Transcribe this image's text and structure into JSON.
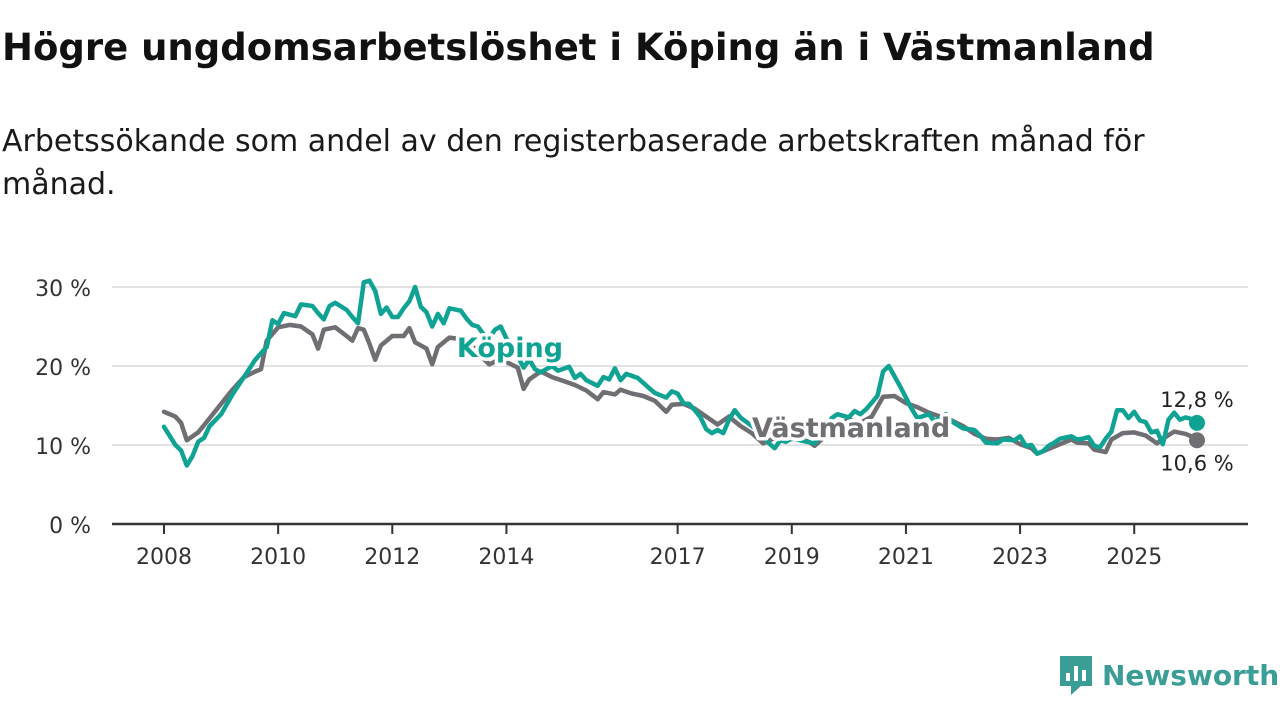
{
  "title": "Högre ungdomsarbetslöshet i Köping än i Västmanland",
  "subtitle": "Arbetssökande som andel av den registerbaserade arbetskraften månad för månad.",
  "brand": {
    "name": "Newsworthy",
    "logo_icon": "newsworthy-logo-icon"
  },
  "chart_data": {
    "type": "line",
    "title": "Högre ungdomsarbetslöshet i Köping än i Västmanland",
    "subtitle": "Arbetssökande som andel av den registerbaserade arbetskraften månad för månad.",
    "xlabel": "",
    "ylabel": "",
    "xlim": [
      2007.5,
      2026.9
    ],
    "ylim": [
      0,
      30
    ],
    "grid": true,
    "legend": "inline labels",
    "x_ticks": [
      2008,
      2010,
      2012,
      2014,
      2017,
      2019,
      2021,
      2023,
      2025
    ],
    "x_tick_labels": [
      "2008",
      "2010",
      "2012",
      "2014",
      "2017",
      "2019",
      "2021",
      "2023",
      "2025"
    ],
    "y_ticks": [
      0,
      10,
      20,
      30
    ],
    "y_tick_labels": [
      "0 %",
      "10 %",
      "20 %",
      "30 %"
    ],
    "series": [
      {
        "name": "Västmanland",
        "label": "Västmanland",
        "color": "#6e6e73",
        "end_label": "10,6 %",
        "points": [
          [
            2008.0,
            14.2
          ],
          [
            2008.2,
            13.6
          ],
          [
            2008.3,
            12.8
          ],
          [
            2008.4,
            10.6
          ],
          [
            2008.6,
            11.6
          ],
          [
            2008.8,
            13.4
          ],
          [
            2009.0,
            15.2
          ],
          [
            2009.2,
            17.0
          ],
          [
            2009.4,
            18.6
          ],
          [
            2009.6,
            19.3
          ],
          [
            2009.7,
            19.6
          ],
          [
            2009.8,
            23.2
          ],
          [
            2010.0,
            24.9
          ],
          [
            2010.2,
            25.2
          ],
          [
            2010.4,
            25.0
          ],
          [
            2010.6,
            24.0
          ],
          [
            2010.7,
            22.2
          ],
          [
            2010.8,
            24.6
          ],
          [
            2011.0,
            24.9
          ],
          [
            2011.2,
            23.8
          ],
          [
            2011.3,
            23.2
          ],
          [
            2011.4,
            24.8
          ],
          [
            2011.5,
            24.6
          ],
          [
            2011.6,
            22.8
          ],
          [
            2011.7,
            20.8
          ],
          [
            2011.8,
            22.6
          ],
          [
            2012.0,
            23.8
          ],
          [
            2012.2,
            23.8
          ],
          [
            2012.3,
            24.8
          ],
          [
            2012.4,
            23.0
          ],
          [
            2012.6,
            22.2
          ],
          [
            2012.7,
            20.2
          ],
          [
            2012.8,
            22.4
          ],
          [
            2013.0,
            23.6
          ],
          [
            2013.2,
            23.4
          ],
          [
            2013.4,
            22.6
          ],
          [
            2013.5,
            21.6
          ],
          [
            2013.7,
            20.2
          ],
          [
            2013.9,
            20.9
          ],
          [
            2014.0,
            20.5
          ],
          [
            2014.2,
            19.8
          ],
          [
            2014.3,
            17.1
          ],
          [
            2014.4,
            18.3
          ],
          [
            2014.6,
            19.3
          ],
          [
            2014.8,
            18.6
          ],
          [
            2015.0,
            18.1
          ],
          [
            2015.2,
            17.6
          ],
          [
            2015.4,
            16.9
          ],
          [
            2015.6,
            15.8
          ],
          [
            2015.7,
            16.7
          ],
          [
            2015.9,
            16.4
          ],
          [
            2016.0,
            17.0
          ],
          [
            2016.2,
            16.5
          ],
          [
            2016.4,
            16.2
          ],
          [
            2016.6,
            15.6
          ],
          [
            2016.8,
            14.2
          ],
          [
            2016.9,
            15.1
          ],
          [
            2017.1,
            15.2
          ],
          [
            2017.3,
            14.6
          ],
          [
            2017.5,
            13.6
          ],
          [
            2017.7,
            12.6
          ],
          [
            2017.9,
            13.6
          ],
          [
            2018.1,
            12.4
          ],
          [
            2018.3,
            11.5
          ],
          [
            2018.5,
            10.2
          ],
          [
            2018.7,
            10.9
          ],
          [
            2018.9,
            10.6
          ],
          [
            2019.1,
            10.9
          ],
          [
            2019.3,
            10.4
          ],
          [
            2019.4,
            9.9
          ],
          [
            2019.6,
            11.2
          ],
          [
            2019.8,
            12.6
          ],
          [
            2020.0,
            13.2
          ],
          [
            2020.2,
            12.8
          ],
          [
            2020.4,
            13.6
          ],
          [
            2020.6,
            16.1
          ],
          [
            2020.8,
            16.2
          ],
          [
            2021.0,
            15.3
          ],
          [
            2021.2,
            14.8
          ],
          [
            2021.4,
            14.1
          ],
          [
            2021.6,
            13.6
          ],
          [
            2021.8,
            13.1
          ],
          [
            2022.0,
            12.4
          ],
          [
            2022.2,
            11.4
          ],
          [
            2022.4,
            10.8
          ],
          [
            2022.6,
            10.7
          ],
          [
            2022.8,
            10.9
          ],
          [
            2023.0,
            10.1
          ],
          [
            2023.2,
            9.6
          ],
          [
            2023.3,
            8.9
          ],
          [
            2023.5,
            9.5
          ],
          [
            2023.7,
            10.1
          ],
          [
            2023.9,
            10.7
          ],
          [
            2024.0,
            10.3
          ],
          [
            2024.2,
            10.2
          ],
          [
            2024.3,
            9.4
          ],
          [
            2024.5,
            9.1
          ],
          [
            2024.6,
            10.7
          ],
          [
            2024.8,
            11.5
          ],
          [
            2025.0,
            11.6
          ],
          [
            2025.2,
            11.2
          ],
          [
            2025.4,
            10.2
          ],
          [
            2025.5,
            10.8
          ],
          [
            2025.7,
            11.7
          ],
          [
            2025.9,
            11.4
          ],
          [
            2026.0,
            11.1
          ],
          [
            2026.1,
            10.6
          ]
        ]
      },
      {
        "name": "Köping",
        "label": "Köping",
        "color": "#10a394",
        "end_label": "12,8 %",
        "points": [
          [
            2008.0,
            12.3
          ],
          [
            2008.2,
            10.0
          ],
          [
            2008.3,
            9.3
          ],
          [
            2008.4,
            7.4
          ],
          [
            2008.5,
            8.6
          ],
          [
            2008.6,
            10.4
          ],
          [
            2008.7,
            10.9
          ],
          [
            2008.8,
            12.4
          ],
          [
            2009.0,
            13.9
          ],
          [
            2009.2,
            16.4
          ],
          [
            2009.4,
            18.6
          ],
          [
            2009.6,
            20.8
          ],
          [
            2009.8,
            22.4
          ],
          [
            2009.9,
            25.8
          ],
          [
            2010.0,
            25.3
          ],
          [
            2010.1,
            26.7
          ],
          [
            2010.3,
            26.3
          ],
          [
            2010.4,
            27.8
          ],
          [
            2010.6,
            27.6
          ],
          [
            2010.7,
            26.7
          ],
          [
            2010.8,
            25.9
          ],
          [
            2010.9,
            27.6
          ],
          [
            2011.0,
            28.0
          ],
          [
            2011.2,
            27.1
          ],
          [
            2011.3,
            26.2
          ],
          [
            2011.4,
            25.4
          ],
          [
            2011.5,
            30.6
          ],
          [
            2011.6,
            30.8
          ],
          [
            2011.7,
            29.5
          ],
          [
            2011.8,
            26.6
          ],
          [
            2011.9,
            27.4
          ],
          [
            2012.0,
            26.2
          ],
          [
            2012.1,
            26.2
          ],
          [
            2012.2,
            27.3
          ],
          [
            2012.3,
            28.2
          ],
          [
            2012.4,
            30.0
          ],
          [
            2012.5,
            27.5
          ],
          [
            2012.6,
            26.8
          ],
          [
            2012.7,
            25.0
          ],
          [
            2012.8,
            26.6
          ],
          [
            2012.9,
            25.4
          ],
          [
            2013.0,
            27.3
          ],
          [
            2013.2,
            27.0
          ],
          [
            2013.3,
            26.0
          ],
          [
            2013.4,
            25.2
          ],
          [
            2013.5,
            25.0
          ],
          [
            2013.6,
            24.0
          ],
          [
            2013.7,
            23.5
          ],
          [
            2013.8,
            24.6
          ],
          [
            2013.9,
            25.0
          ],
          [
            2014.0,
            23.5
          ],
          [
            2014.1,
            22.6
          ],
          [
            2014.3,
            19.8
          ],
          [
            2014.4,
            20.8
          ],
          [
            2014.5,
            19.6
          ],
          [
            2014.6,
            19.2
          ],
          [
            2014.8,
            20.0
          ],
          [
            2014.9,
            19.4
          ],
          [
            2015.1,
            19.9
          ],
          [
            2015.2,
            18.5
          ],
          [
            2015.3,
            19.0
          ],
          [
            2015.4,
            18.2
          ],
          [
            2015.6,
            17.5
          ],
          [
            2015.7,
            18.6
          ],
          [
            2015.8,
            18.3
          ],
          [
            2015.9,
            19.7
          ],
          [
            2016.0,
            18.2
          ],
          [
            2016.1,
            19.0
          ],
          [
            2016.3,
            18.5
          ],
          [
            2016.5,
            17.2
          ],
          [
            2016.6,
            16.6
          ],
          [
            2016.8,
            16.0
          ],
          [
            2016.9,
            16.8
          ],
          [
            2017.0,
            16.5
          ],
          [
            2017.1,
            15.3
          ],
          [
            2017.2,
            15.2
          ],
          [
            2017.3,
            14.4
          ],
          [
            2017.4,
            13.5
          ],
          [
            2017.5,
            12.0
          ],
          [
            2017.6,
            11.5
          ],
          [
            2017.7,
            11.9
          ],
          [
            2017.8,
            11.5
          ],
          [
            2017.9,
            13.2
          ],
          [
            2018.0,
            14.4
          ],
          [
            2018.1,
            13.5
          ],
          [
            2018.3,
            12.4
          ],
          [
            2018.5,
            11.2
          ],
          [
            2018.6,
            10.2
          ],
          [
            2018.7,
            9.6
          ],
          [
            2018.8,
            10.6
          ],
          [
            2018.9,
            10.4
          ],
          [
            2019.0,
            10.9
          ],
          [
            2019.2,
            10.5
          ],
          [
            2019.4,
            10.2
          ],
          [
            2019.6,
            12.1
          ],
          [
            2019.7,
            13.4
          ],
          [
            2019.8,
            13.9
          ],
          [
            2020.0,
            13.5
          ],
          [
            2020.1,
            14.3
          ],
          [
            2020.2,
            13.9
          ],
          [
            2020.3,
            14.5
          ],
          [
            2020.5,
            16.2
          ],
          [
            2020.6,
            19.3
          ],
          [
            2020.7,
            20.0
          ],
          [
            2020.9,
            17.4
          ],
          [
            2021.1,
            14.6
          ],
          [
            2021.2,
            13.4
          ],
          [
            2021.4,
            13.9
          ],
          [
            2021.5,
            13.0
          ],
          [
            2021.7,
            13.9
          ],
          [
            2021.8,
            13.0
          ],
          [
            2022.0,
            12.1
          ],
          [
            2022.2,
            11.9
          ],
          [
            2022.3,
            11.2
          ],
          [
            2022.4,
            10.3
          ],
          [
            2022.6,
            10.2
          ],
          [
            2022.7,
            10.7
          ],
          [
            2022.9,
            10.6
          ],
          [
            2023.0,
            11.1
          ],
          [
            2023.1,
            9.9
          ],
          [
            2023.2,
            10.0
          ],
          [
            2023.3,
            8.9
          ],
          [
            2023.4,
            9.2
          ],
          [
            2023.5,
            9.9
          ],
          [
            2023.6,
            10.3
          ],
          [
            2023.7,
            10.8
          ],
          [
            2023.9,
            11.1
          ],
          [
            2024.0,
            10.7
          ],
          [
            2024.1,
            10.8
          ],
          [
            2024.2,
            11.0
          ],
          [
            2024.3,
            9.9
          ],
          [
            2024.4,
            9.7
          ],
          [
            2024.5,
            10.8
          ],
          [
            2024.6,
            11.7
          ],
          [
            2024.7,
            14.4
          ],
          [
            2024.8,
            14.4
          ],
          [
            2024.9,
            13.4
          ],
          [
            2025.0,
            14.2
          ],
          [
            2025.1,
            13.1
          ],
          [
            2025.2,
            12.9
          ],
          [
            2025.3,
            11.6
          ],
          [
            2025.4,
            11.8
          ],
          [
            2025.5,
            10.1
          ],
          [
            2025.6,
            13.2
          ],
          [
            2025.7,
            14.1
          ],
          [
            2025.8,
            13.2
          ],
          [
            2025.9,
            13.5
          ],
          [
            2026.0,
            13.3
          ],
          [
            2026.1,
            12.8
          ]
        ]
      }
    ]
  }
}
